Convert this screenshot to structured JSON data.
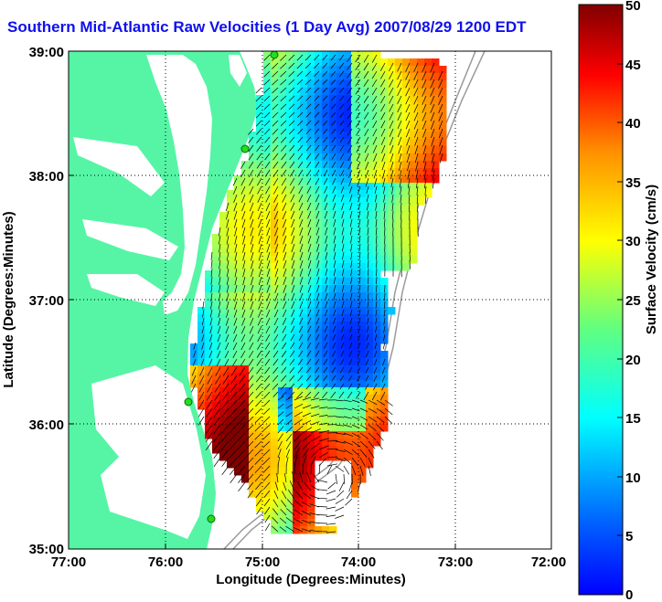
{
  "title": "Southern Mid-Atlantic Raw Velocities (1 Day Avg) 2007/08/29 1200 EDT",
  "map": {
    "xlabel": "Longitude (Degrees:Minutes)",
    "ylabel": "Latitude (Degrees:Minutes)",
    "x_ticks": [
      "77:00",
      "76:00",
      "75:00",
      "74:00",
      "73:00",
      "72:00"
    ],
    "y_ticks": [
      "39:00",
      "38:00",
      "37:00",
      "36:00",
      "35:00"
    ],
    "x_range_deg_west": [
      77,
      72
    ],
    "y_range_deg_north": [
      35,
      39
    ],
    "grid": "dotted",
    "land_color": "#55f5a5",
    "water_color": "#ffffff",
    "bathymetry_color": "#9a9a9a",
    "station_marker_color": "#22dd22",
    "station_count": 4
  },
  "colorbar": {
    "label": "Surface Velocity (cm/s)",
    "ticks": [
      "0",
      "5",
      "10",
      "15",
      "20",
      "25",
      "30",
      "35",
      "40",
      "45",
      "50"
    ],
    "range": [
      0,
      50
    ],
    "units": "cm/s",
    "colormap": "jet"
  }
}
